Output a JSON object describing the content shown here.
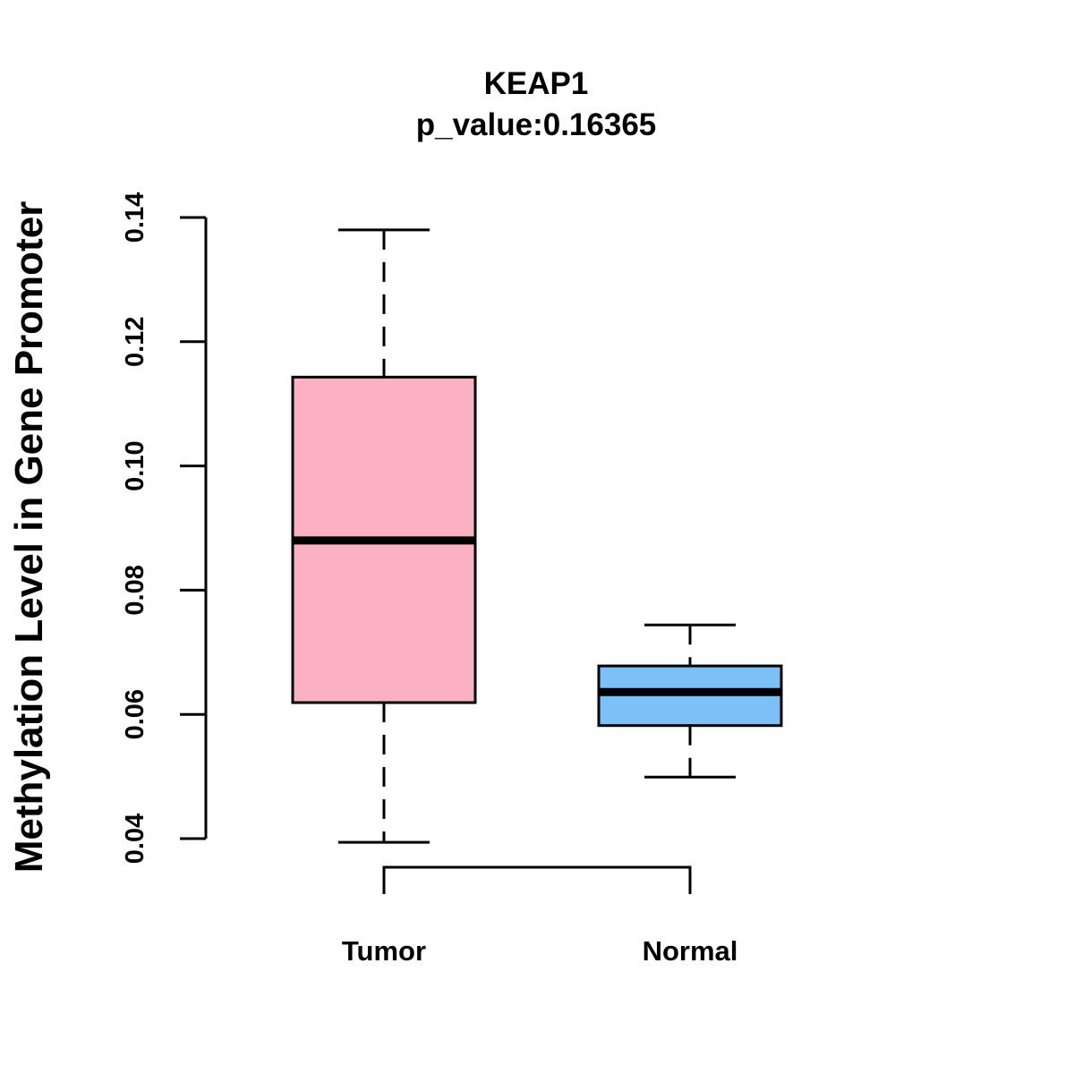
{
  "chart_data": {
    "type": "boxplot",
    "title": "KEAP1",
    "subtitle": "p_value:0.16365",
    "ylabel": "Methylation Level in Gene Promoter",
    "xlabel": "",
    "ylim": [
      0.04,
      0.14
    ],
    "yticks": [
      0.04,
      0.06,
      0.08,
      0.1,
      0.12,
      0.14
    ],
    "ytick_labels": [
      "0.04",
      "0.06",
      "0.08",
      "0.10",
      "0.12",
      "0.14"
    ],
    "categories": [
      "Tumor",
      "Normal"
    ],
    "series": [
      {
        "name": "Tumor",
        "whisker_low": 0.0394,
        "q1": 0.0619,
        "median": 0.088,
        "q3": 0.1143,
        "whisker_high": 0.138,
        "color": "#FBB1C2"
      },
      {
        "name": "Normal",
        "whisker_low": 0.0499,
        "q1": 0.0582,
        "median": 0.0636,
        "q3": 0.0678,
        "whisker_high": 0.0744,
        "color": "#7BC1F7"
      }
    ],
    "comparison_bracket": [
      "Tumor",
      "Normal"
    ]
  }
}
